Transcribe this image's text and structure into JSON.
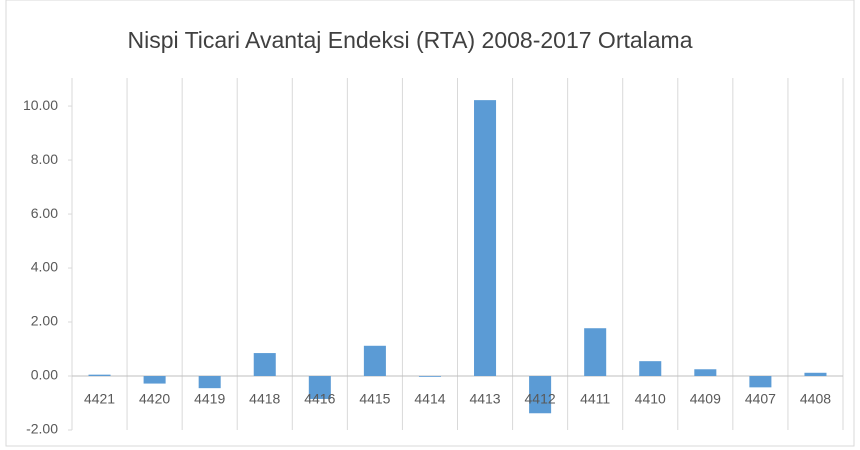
{
  "chart_data": {
    "type": "bar",
    "title": "Nispi Ticari Avantaj Endeksi (RTA) 2008-2017 Ortalama",
    "categories": [
      "4421",
      "4420",
      "4419",
      "4418",
      "4416",
      "4415",
      "4414",
      "4413",
      "4412",
      "4411",
      "4410",
      "4409",
      "4407",
      "4408"
    ],
    "values": [
      0.05,
      -0.28,
      -0.45,
      0.85,
      -0.85,
      1.12,
      -0.03,
      10.22,
      -1.38,
      1.77,
      0.55,
      0.25,
      -0.42,
      0.12
    ],
    "color": "#5b9bd5",
    "ylim": [
      -2,
      11.04
    ],
    "yticks": [
      {
        "value": -2,
        "label": "-2.00"
      },
      {
        "value": 0,
        "label": "0.00"
      },
      {
        "value": 2,
        "label": "2.00"
      },
      {
        "value": 4,
        "label": "4.00"
      },
      {
        "value": 6,
        "label": "6.00"
      },
      {
        "value": 8,
        "label": "8.00"
      },
      {
        "value": 10,
        "label": "10.00"
      }
    ],
    "grid": "vertical"
  }
}
